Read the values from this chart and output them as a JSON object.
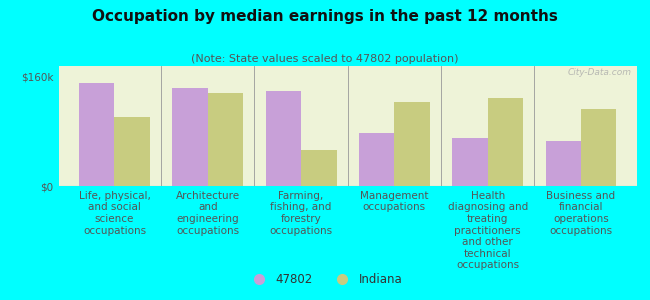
{
  "title": "Occupation by median earnings in the past 12 months",
  "subtitle": "(Note: State values scaled to 47802 population)",
  "background_color": "#00FFFF",
  "plot_bg_color": "#eef3d8",
  "categories": [
    "Life, physical,\nand social\nscience\noccupations",
    "Architecture\nand\nengineering\noccupations",
    "Farming,\nfishing, and\nforestry\noccupations",
    "Management\noccupations",
    "Health\ndiagnosing and\ntreating\npractitioners\nand other\ntechnical\noccupations",
    "Business and\nfinancial\noperations\noccupations"
  ],
  "values_47802": [
    150000,
    143000,
    138000,
    78000,
    70000,
    66000
  ],
  "values_indiana": [
    100000,
    136000,
    52000,
    122000,
    128000,
    112000
  ],
  "color_47802": "#c8a0d8",
  "color_indiana": "#c8cc80",
  "ylim": [
    0,
    175000
  ],
  "ytick_labels": [
    "$0",
    "$160k"
  ],
  "ytick_vals": [
    0,
    160000
  ],
  "legend_47802": "47802",
  "legend_indiana": "Indiana",
  "bar_width": 0.38,
  "watermark": "City-Data.com",
  "title_fontsize": 11,
  "subtitle_fontsize": 8,
  "tick_fontsize": 7.5,
  "legend_fontsize": 8.5
}
